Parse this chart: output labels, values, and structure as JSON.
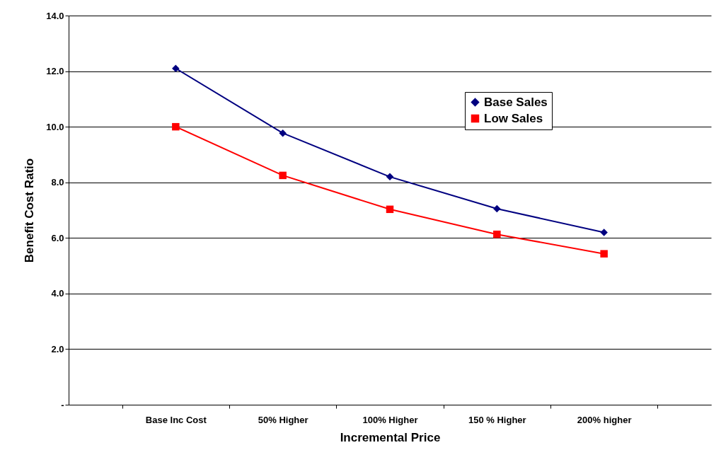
{
  "chart_data": {
    "type": "line",
    "xlabel": "Incremental Price",
    "ylabel": "Benefit Cost Ratio",
    "categories": [
      "Base Inc Cost",
      "50% Higher",
      "100% Higher",
      "150 % Higher",
      "200% higher"
    ],
    "series": [
      {
        "name": "Base Sales",
        "color": "#000080",
        "marker": "diamond",
        "values": [
          12.1,
          9.77,
          8.2,
          7.05,
          6.2
        ]
      },
      {
        "name": "Low Sales",
        "color": "#ff0000",
        "marker": "square",
        "values": [
          10.0,
          8.25,
          7.03,
          6.13,
          5.43
        ]
      }
    ],
    "ylim": [
      0,
      14
    ],
    "yticks": [
      {
        "value": 0,
        "label": "-"
      },
      {
        "value": 2,
        "label": "2.0"
      },
      {
        "value": 4,
        "label": "4.0"
      },
      {
        "value": 6,
        "label": "6.0"
      },
      {
        "value": 8,
        "label": "8.0"
      },
      {
        "value": 10,
        "label": "10.0"
      },
      {
        "value": 12,
        "label": "12.0"
      },
      {
        "value": 14,
        "label": "14.0"
      }
    ],
    "grid": "y",
    "legend": "top right",
    "line_style": "solid"
  }
}
